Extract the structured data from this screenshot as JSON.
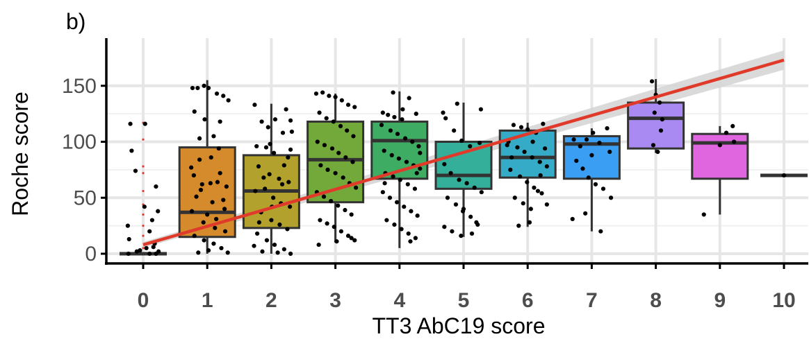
{
  "panel_tag": "b)",
  "chart_data": {
    "type": "boxplot",
    "xlabel": "TT3 AbC19 score",
    "ylabel": "Roche score",
    "x_categories": [
      "0",
      "1",
      "2",
      "3",
      "4",
      "5",
      "6",
      "7",
      "8",
      "9",
      "10"
    ],
    "y_ticks": [
      0,
      50,
      100,
      150
    ],
    "ylim": [
      -8,
      185
    ],
    "grid": true,
    "boxes": [
      {
        "x": 0,
        "q1": 0,
        "median": 0,
        "q3": 0,
        "low": 0,
        "high": 0,
        "color": "#000000"
      },
      {
        "x": 1,
        "q1": 15,
        "median": 37,
        "q3": 95,
        "low": 0,
        "high": 155,
        "color": "#d58a2c"
      },
      {
        "x": 2,
        "q1": 23,
        "median": 56,
        "q3": 88,
        "low": 0,
        "high": 134,
        "color": "#b3a12d"
      },
      {
        "x": 3,
        "q1": 46,
        "median": 84,
        "q3": 118,
        "low": 10,
        "high": 143,
        "color": "#73a83a"
      },
      {
        "x": 4,
        "q1": 67,
        "median": 101,
        "q3": 118,
        "low": 5,
        "high": 145,
        "color": "#3fac63"
      },
      {
        "x": 5,
        "q1": 58,
        "median": 70,
        "q3": 100,
        "low": 15,
        "high": 135,
        "color": "#34b09a"
      },
      {
        "x": 6,
        "q1": 68,
        "median": 86,
        "q3": 110,
        "low": 24,
        "high": 117,
        "color": "#36abc7"
      },
      {
        "x": 7,
        "q1": 67,
        "median": 98,
        "q3": 105,
        "low": 20,
        "high": 112,
        "color": "#3a9ef2"
      },
      {
        "x": 8,
        "q1": 94,
        "median": 121,
        "q3": 135,
        "low": 90,
        "high": 156,
        "color": "#a88af2"
      },
      {
        "x": 9,
        "q1": 67,
        "median": 99,
        "q3": 107,
        "low": 35,
        "high": 114,
        "color": "#df66de"
      },
      {
        "x": 10,
        "q1": 70,
        "median": 70,
        "q3": 70,
        "low": 70,
        "high": 70,
        "color": "#f2f2f2"
      }
    ],
    "outliers_0": [
      5,
      16,
      25,
      35,
      44,
      56,
      72,
      78,
      102,
      117
    ],
    "points": [
      [
        0.03,
        116
      ],
      [
        -0.2,
        116
      ],
      [
        -0.18,
        92
      ],
      [
        0.2,
        60
      ],
      [
        -0.12,
        74
      ],
      [
        0.1,
        20
      ],
      [
        0.23,
        38
      ],
      [
        -0.23,
        0
      ],
      [
        0.05,
        5
      ],
      [
        -0.1,
        2
      ],
      [
        -0.22,
        13
      ],
      [
        0.16,
        6
      ],
      [
        0.2,
        0
      ],
      [
        0.1,
        0
      ],
      [
        0.24,
        2
      ],
      [
        -0.05,
        3
      ],
      [
        0.18,
        9
      ],
      [
        -0.24,
        25
      ],
      [
        0.02,
        42
      ],
      [
        0.14,
        30
      ],
      [
        0.77,
        148
      ],
      [
        0.85,
        148
      ],
      [
        0.95,
        150
      ],
      [
        1.02,
        148
      ],
      [
        1.15,
        143
      ],
      [
        1.25,
        141
      ],
      [
        0.8,
        127
      ],
      [
        0.96,
        120
      ],
      [
        1.1,
        105
      ],
      [
        1.3,
        60
      ],
      [
        0.88,
        84
      ],
      [
        1.18,
        94
      ],
      [
        0.75,
        77
      ],
      [
        1.2,
        72
      ],
      [
        1.05,
        63
      ],
      [
        0.9,
        57
      ],
      [
        0.83,
        51
      ],
      [
        1.08,
        46
      ],
      [
        1.25,
        48
      ],
      [
        0.76,
        38
      ],
      [
        0.94,
        28
      ],
      [
        1.12,
        23
      ],
      [
        1.28,
        20
      ],
      [
        0.8,
        16
      ],
      [
        0.95,
        12
      ],
      [
        1.1,
        9
      ],
      [
        1.22,
        5
      ],
      [
        0.86,
        1
      ],
      [
        1.02,
        3
      ],
      [
        1.32,
        1
      ],
      [
        0.92,
        62
      ],
      [
        1.16,
        64
      ],
      [
        1.27,
        40
      ],
      [
        0.79,
        70
      ],
      [
        1.06,
        86
      ],
      [
        1.2,
        118
      ],
      [
        1.33,
        137
      ],
      [
        0.88,
        103
      ],
      [
        1.0,
        35
      ],
      [
        1.14,
        31
      ],
      [
        1.74,
        133
      ],
      [
        1.85,
        118
      ],
      [
        1.95,
        113
      ],
      [
        2.06,
        120
      ],
      [
        2.18,
        108
      ],
      [
        2.3,
        119
      ],
      [
        1.77,
        96
      ],
      [
        1.92,
        95
      ],
      [
        2.04,
        90
      ],
      [
        2.2,
        79
      ],
      [
        1.8,
        78
      ],
      [
        1.97,
        71
      ],
      [
        2.12,
        67
      ],
      [
        2.27,
        64
      ],
      [
        1.75,
        56
      ],
      [
        1.9,
        58
      ],
      [
        2.03,
        50
      ],
      [
        2.15,
        45
      ],
      [
        2.29,
        42
      ],
      [
        1.84,
        37
      ],
      [
        2.0,
        30
      ],
      [
        2.13,
        26
      ],
      [
        2.25,
        22
      ],
      [
        1.78,
        18
      ],
      [
        1.93,
        12
      ],
      [
        2.05,
        8
      ],
      [
        2.2,
        4
      ],
      [
        2.3,
        0
      ],
      [
        1.86,
        2
      ],
      [
        2.1,
        1
      ],
      [
        2.26,
        86
      ],
      [
        2.32,
        109
      ],
      [
        1.73,
        7
      ],
      [
        1.98,
        98
      ],
      [
        2.17,
        62
      ],
      [
        2.23,
        129
      ],
      [
        1.88,
        68
      ],
      [
        2.01,
        42
      ],
      [
        2.3,
        93
      ],
      [
        1.81,
        28
      ],
      [
        2.7,
        143
      ],
      [
        2.8,
        144
      ],
      [
        2.9,
        141
      ],
      [
        3.0,
        140
      ],
      [
        3.1,
        137
      ],
      [
        3.2,
        133
      ],
      [
        3.3,
        131
      ],
      [
        2.75,
        126
      ],
      [
        2.86,
        121
      ],
      [
        2.97,
        118
      ],
      [
        3.08,
        114
      ],
      [
        3.18,
        110
      ],
      [
        3.28,
        105
      ],
      [
        2.72,
        100
      ],
      [
        2.83,
        97
      ],
      [
        2.95,
        94
      ],
      [
        3.05,
        90
      ],
      [
        3.16,
        86
      ],
      [
        3.27,
        82
      ],
      [
        2.77,
        79
      ],
      [
        2.88,
        75
      ],
      [
        3.0,
        72
      ],
      [
        3.12,
        68
      ],
      [
        3.22,
        63
      ],
      [
        3.32,
        59
      ],
      [
        2.71,
        55
      ],
      [
        2.82,
        51
      ],
      [
        2.93,
        47
      ],
      [
        3.04,
        43
      ],
      [
        3.15,
        39
      ],
      [
        3.25,
        35
      ],
      [
        2.76,
        30
      ],
      [
        2.87,
        27
      ],
      [
        2.98,
        24
      ],
      [
        3.09,
        20
      ],
      [
        3.2,
        16
      ],
      [
        3.3,
        12
      ],
      [
        2.74,
        8
      ],
      [
        3.02,
        11
      ],
      [
        3.25,
        14
      ],
      [
        3.74,
        126
      ],
      [
        3.82,
        124
      ],
      [
        3.92,
        122
      ],
      [
        4.04,
        120
      ],
      [
        4.15,
        139
      ],
      [
        4.26,
        125
      ],
      [
        3.72,
        115
      ],
      [
        3.86,
        110
      ],
      [
        3.97,
        107
      ],
      [
        4.09,
        103
      ],
      [
        4.2,
        100
      ],
      [
        4.3,
        96
      ],
      [
        3.76,
        92
      ],
      [
        3.88,
        88
      ],
      [
        3.99,
        85
      ],
      [
        4.11,
        82
      ],
      [
        4.22,
        79
      ],
      [
        4.32,
        76
      ],
      [
        3.78,
        72
      ],
      [
        3.9,
        69
      ],
      [
        4.01,
        66
      ],
      [
        4.13,
        62
      ],
      [
        4.24,
        58
      ],
      [
        3.74,
        55
      ],
      [
        3.85,
        50
      ],
      [
        3.96,
        46
      ],
      [
        4.07,
        42
      ],
      [
        4.18,
        38
      ],
      [
        4.28,
        34
      ],
      [
        3.8,
        30
      ],
      [
        3.92,
        26
      ],
      [
        4.03,
        22
      ],
      [
        4.14,
        18
      ],
      [
        4.25,
        14
      ],
      [
        3.77,
        63
      ],
      [
        4.32,
        90
      ],
      [
        4.05,
        129
      ],
      [
        3.9,
        144
      ],
      [
        4.17,
        11
      ],
      [
        4.27,
        72
      ],
      [
        4.68,
        126
      ],
      [
        4.72,
        121
      ],
      [
        4.85,
        110
      ],
      [
        4.97,
        101
      ],
      [
        5.1,
        96
      ],
      [
        5.25,
        99
      ],
      [
        4.7,
        80
      ],
      [
        4.8,
        72
      ],
      [
        4.93,
        66
      ],
      [
        5.05,
        63
      ],
      [
        5.17,
        59
      ],
      [
        5.28,
        55
      ],
      [
        4.75,
        50
      ],
      [
        4.88,
        44
      ],
      [
        4.99,
        38
      ],
      [
        5.11,
        33
      ],
      [
        5.2,
        28
      ],
      [
        4.7,
        24
      ],
      [
        4.82,
        20
      ],
      [
        4.96,
        16
      ],
      [
        5.13,
        18
      ],
      [
        5.27,
        129
      ],
      [
        4.9,
        134
      ],
      [
        5.0,
        40
      ],
      [
        5.22,
        26
      ],
      [
        5.68,
        97
      ],
      [
        5.78,
        115
      ],
      [
        5.9,
        113
      ],
      [
        6.0,
        111
      ],
      [
        6.13,
        108
      ],
      [
        6.24,
        116
      ],
      [
        5.7,
        100
      ],
      [
        5.84,
        95
      ],
      [
        5.95,
        91
      ],
      [
        6.07,
        86
      ],
      [
        6.19,
        82
      ],
      [
        6.3,
        78
      ],
      [
        5.73,
        75
      ],
      [
        5.88,
        69
      ],
      [
        5.99,
        64
      ],
      [
        6.1,
        59
      ],
      [
        6.22,
        54
      ],
      [
        5.8,
        50
      ],
      [
        5.93,
        45
      ],
      [
        6.05,
        40
      ],
      [
        6.16,
        56
      ],
      [
        6.3,
        44
      ],
      [
        5.86,
        25
      ],
      [
        6.03,
        28
      ],
      [
        6.27,
        94
      ],
      [
        5.75,
        86
      ],
      [
        6.08,
        100
      ],
      [
        6.2,
        70
      ],
      [
        6.72,
        102
      ],
      [
        6.82,
        96
      ],
      [
        6.92,
        102
      ],
      [
        7.02,
        108
      ],
      [
        7.12,
        99
      ],
      [
        7.24,
        112
      ],
      [
        6.76,
        83
      ],
      [
        6.86,
        76
      ],
      [
        6.95,
        68
      ],
      [
        7.06,
        62
      ],
      [
        7.18,
        58
      ],
      [
        7.28,
        91
      ],
      [
        6.7,
        31
      ],
      [
        6.9,
        36
      ],
      [
        7.14,
        20
      ],
      [
        7.3,
        50
      ],
      [
        7.0,
        88
      ],
      [
        7.94,
        154
      ],
      [
        8.0,
        142
      ],
      [
        8.06,
        135
      ],
      [
        7.98,
        126
      ],
      [
        8.1,
        120
      ],
      [
        7.96,
        97
      ],
      [
        8.03,
        91
      ],
      [
        8.08,
        110
      ],
      [
        8.75,
        35
      ],
      [
        9.0,
        97
      ],
      [
        9.1,
        108
      ],
      [
        9.2,
        114
      ],
      [
        9.22,
        100
      ],
      [
        10.0,
        70
      ]
    ],
    "trend": {
      "x0": 0,
      "y0": 8,
      "x1": 10,
      "y1": 173,
      "color": "#e03a2a",
      "band_color": "#d4d4d4"
    }
  }
}
